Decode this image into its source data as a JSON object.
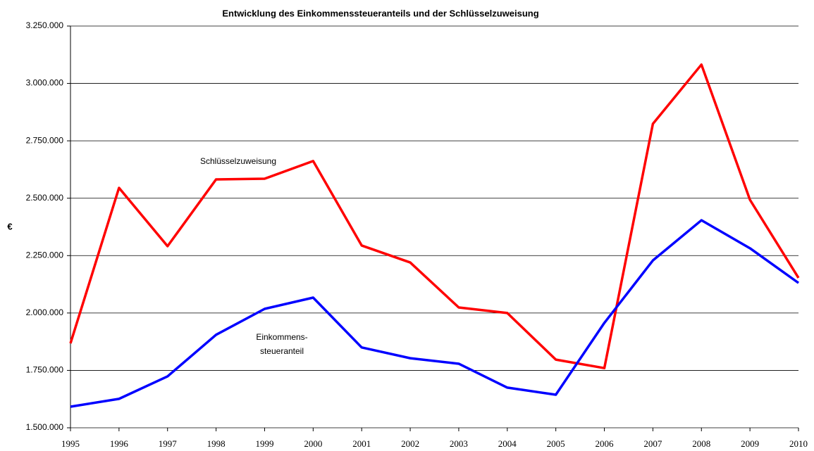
{
  "chart_data": {
    "type": "line",
    "title": "Entwicklung des Einkommenssteueranteils und der Schlüsselzuweisung",
    "ylabel": "€",
    "x": [
      1995,
      1996,
      1997,
      1998,
      1999,
      2000,
      2001,
      2002,
      2003,
      2004,
      2005,
      2006,
      2007,
      2008,
      2009,
      2010
    ],
    "xlim": [
      1995,
      2010
    ],
    "xticks": [
      1995,
      1996,
      1997,
      1998,
      1999,
      2000,
      2001,
      2002,
      2003,
      2004,
      2005,
      2006,
      2007,
      2008,
      2009,
      2010
    ],
    "ylim": [
      1500000,
      3250000
    ],
    "yticks": [
      {
        "value": 1500000,
        "label": "1.500.000"
      },
      {
        "value": 1750000,
        "label": "1.750.000"
      },
      {
        "value": 2000000,
        "label": "2.000.000"
      },
      {
        "value": 2250000,
        "label": "2.250.000"
      },
      {
        "value": 2500000,
        "label": "2.500.000"
      },
      {
        "value": 2750000,
        "label": "2.750.000"
      },
      {
        "value": 3000000,
        "label": "3.000.000"
      },
      {
        "value": 3250000,
        "label": "3.250.000"
      }
    ],
    "grid": true,
    "series": [
      {
        "color": "#ff0000",
        "values": [
          1868000,
          2545000,
          2291000,
          2582000,
          2585000,
          2662000,
          2294000,
          2220000,
          2024000,
          2000000,
          1797000,
          1760000,
          2824000,
          3082000,
          2493000,
          2153000
        ]
      },
      {
        "color": "#0000ff",
        "values": [
          1592000,
          1626000,
          1724000,
          1905000,
          2018000,
          2067000,
          1850000,
          1803000,
          1779000,
          1675000,
          1644000,
          1957000,
          2229000,
          2404000,
          2282000,
          2131000
        ]
      }
    ],
    "annotations": [
      {
        "lines": [
          "Schlüsselzuweisung"
        ]
      },
      {
        "lines": [
          "Einkommens-",
          "steueranteil"
        ]
      }
    ]
  }
}
